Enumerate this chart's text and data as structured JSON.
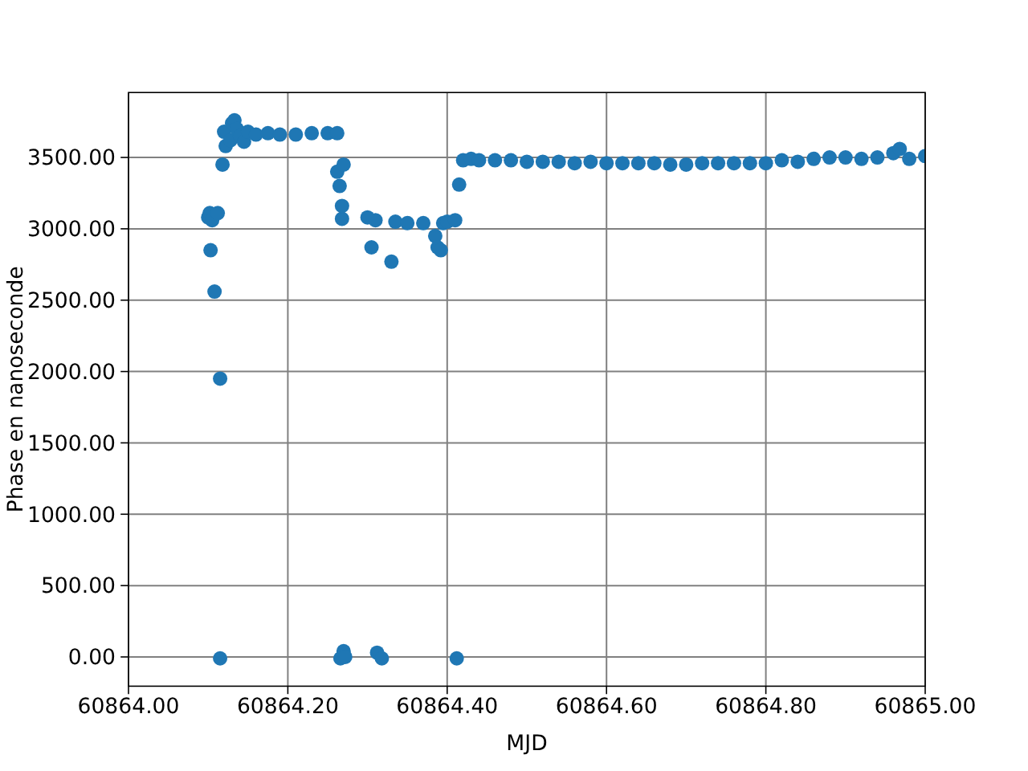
{
  "chart_data": {
    "type": "scatter",
    "xlabel": "MJD",
    "ylabel": "Phase en nanoseconde",
    "marker": "circle",
    "grid": true,
    "xlim": [
      60864.0,
      60865.0
    ],
    "ylim": [
      -205,
      3955
    ],
    "xticks": [
      {
        "value": 60864.0,
        "label": "60864.00"
      },
      {
        "value": 60864.2,
        "label": "60864.20"
      },
      {
        "value": 60864.4,
        "label": "60864.40"
      },
      {
        "value": 60864.6,
        "label": "60864.60"
      },
      {
        "value": 60864.8,
        "label": "60864.80"
      },
      {
        "value": 60865.0,
        "label": "60865.00"
      }
    ],
    "yticks": [
      {
        "value": 0,
        "label": "0.00"
      },
      {
        "value": 500,
        "label": "500.00"
      },
      {
        "value": 1000,
        "label": "1000.00"
      },
      {
        "value": 1500,
        "label": "1500.00"
      },
      {
        "value": 2000,
        "label": "2000.00"
      },
      {
        "value": 2500,
        "label": "2500.00"
      },
      {
        "value": 3000,
        "label": "3000.00"
      },
      {
        "value": 3500,
        "label": "3500.00"
      }
    ],
    "series": [
      {
        "color": "#1f77b4",
        "x": [
          60864.1,
          60864.102,
          60864.105,
          60864.103,
          60864.108,
          60864.112,
          60864.115,
          60864.115,
          60864.118,
          60864.12,
          60864.122,
          60864.128,
          60864.13,
          60864.133,
          60864.136,
          60864.14,
          60864.145,
          60864.15,
          60864.16,
          60864.175,
          60864.19,
          60864.21,
          60864.23,
          60864.25,
          60864.262,
          60864.262,
          60864.265,
          60864.268,
          60864.27,
          60864.268,
          60864.266,
          60864.27,
          60864.272,
          60864.3,
          60864.305,
          60864.31,
          60864.312,
          60864.318,
          60864.33,
          60864.335,
          60864.35,
          60864.37,
          60864.385,
          60864.388,
          60864.392,
          60864.395,
          60864.4,
          60864.41,
          60864.412,
          60864.415,
          60864.42,
          60864.43,
          60864.44,
          60864.46,
          60864.48,
          60864.5,
          60864.52,
          60864.54,
          60864.56,
          60864.58,
          60864.6,
          60864.62,
          60864.64,
          60864.66,
          60864.68,
          60864.7,
          60864.72,
          60864.74,
          60864.76,
          60864.78,
          60864.8,
          60864.82,
          60864.84,
          60864.86,
          60864.88,
          60864.9,
          60864.92,
          60864.94,
          60864.96,
          60864.968,
          60864.98,
          60865.0
        ],
        "values": [
          3080,
          3110,
          3060,
          2850,
          2560,
          3110,
          1950,
          -10,
          3450,
          3680,
          3580,
          3620,
          3740,
          3760,
          3700,
          3650,
          3610,
          3680,
          3660,
          3670,
          3660,
          3660,
          3670,
          3670,
          3670,
          3400,
          3300,
          3070,
          3450,
          3160,
          -10,
          40,
          0,
          3080,
          2870,
          3060,
          30,
          -10,
          2770,
          3050,
          3040,
          3040,
          2950,
          2870,
          2850,
          3040,
          3050,
          3060,
          -10,
          3310,
          3480,
          3490,
          3480,
          3480,
          3480,
          3470,
          3470,
          3470,
          3460,
          3470,
          3460,
          3460,
          3460,
          3460,
          3450,
          3450,
          3460,
          3460,
          3460,
          3460,
          3460,
          3480,
          3470,
          3490,
          3500,
          3500,
          3490,
          3500,
          3530,
          3560,
          3490,
          3510
        ]
      }
    ]
  }
}
